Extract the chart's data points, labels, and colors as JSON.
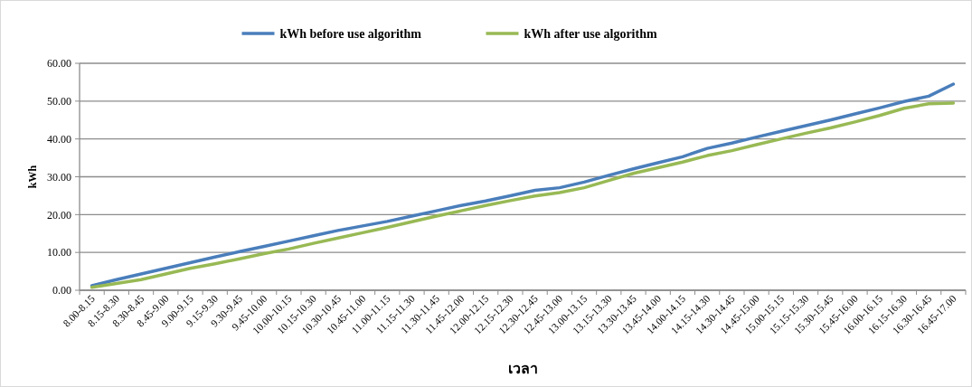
{
  "chart_data": {
    "type": "line",
    "xlabel": "เวลา",
    "ylabel": "kWh",
    "categories": [
      "8.00-8.15",
      "8.15-8.30",
      "8.30-8.45",
      "8.45-9.00",
      "9.00-9.15",
      "9.15-9.30",
      "9.30-9.45",
      "9.45-10.00",
      "10.00-10.15",
      "10.15-10.30",
      "10.30-10.45",
      "10.45-11.00",
      "11.00-11.15",
      "11.15-11.30",
      "11.30-11.45",
      "11.45-12.00",
      "12.00-12.15",
      "12.15-12.30",
      "12.30-12.45",
      "12.45-13.00",
      "13.00-13.15",
      "13.15-13.30",
      "13.30-13.45",
      "13.45-14.00",
      "14.00-14.15",
      "14.15-14.30",
      "14.30-14.45",
      "14.45-15.00",
      "15.00-15.15",
      "15.15-15.30",
      "15.30-15.45",
      "15.45-16.00",
      "16.00-16.15",
      "16.15-16.30",
      "16.30-16.45",
      "16.45-17.00"
    ],
    "series": [
      {
        "name": "kWh before use algorithm",
        "color": "#4a7ebb",
        "values": [
          1.2,
          2.8,
          4.3,
          5.8,
          7.3,
          8.8,
          10.2,
          11.6,
          13.0,
          14.4,
          15.8,
          17.0,
          18.2,
          19.6,
          21.0,
          22.4,
          23.6,
          25.0,
          26.4,
          27.1,
          28.6,
          30.4,
          32.1,
          33.7,
          35.3,
          37.5,
          38.9,
          40.5,
          42.0,
          43.5,
          45.0,
          46.6,
          48.2,
          49.9,
          51.3,
          54.5
        ]
      },
      {
        "name": "kWh after use algorithm",
        "color": "#98b954",
        "values": [
          0.8,
          1.8,
          2.8,
          4.3,
          5.8,
          7.0,
          8.3,
          9.7,
          10.9,
          12.4,
          13.8,
          15.2,
          16.6,
          18.1,
          19.6,
          21.0,
          22.4,
          23.7,
          24.9,
          25.8,
          27.1,
          29.0,
          30.9,
          32.4,
          33.9,
          35.6,
          36.9,
          38.5,
          40.0,
          41.5,
          42.9,
          44.5,
          46.2,
          48.1,
          49.3,
          49.5
        ]
      }
    ],
    "ylim": [
      0,
      60
    ],
    "yticks": [
      {
        "value": 0,
        "label": "0.00"
      },
      {
        "value": 10,
        "label": "10.00"
      },
      {
        "value": 20,
        "label": "20.00"
      },
      {
        "value": 30,
        "label": "30.00"
      },
      {
        "value": 40,
        "label": "40.00"
      },
      {
        "value": 50,
        "label": "50.00"
      },
      {
        "value": 60,
        "label": "60.00"
      }
    ],
    "grid": "y",
    "legend": "top",
    "marker": "none",
    "line_style": "solid"
  }
}
